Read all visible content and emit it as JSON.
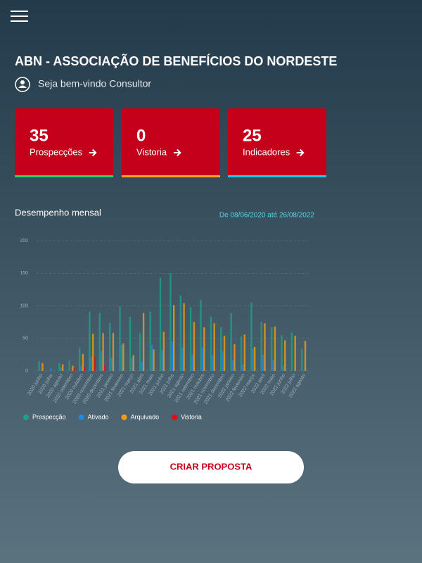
{
  "header": {
    "title": "ABN - ASSOCIAÇÃO DE BENEFÍCIOS DO NORDESTE",
    "welcome": "Seja bem-vindo Consultor"
  },
  "cards": [
    {
      "value": 35,
      "label": "Prospecções"
    },
    {
      "value": 0,
      "label": "Vistoria"
    },
    {
      "value": 25,
      "label": "Indicadores"
    }
  ],
  "chart_data": {
    "type": "bar",
    "title": "Desempenho mensal",
    "subtitle": "De 08/06/2020 até 26/08/2022",
    "categories": [
      "2020 junho",
      "2020 julho",
      "2020 agosto",
      "2020 setembro",
      "2020 outubro",
      "2020 novembro",
      "2020 dezembro",
      "2021 janeiro",
      "2021 fevereiro",
      "2021 março",
      "2021 abril",
      "2021 maio",
      "2021 junho",
      "2021 julho",
      "2021 agosto",
      "2021 setembro",
      "2021 outubro",
      "2021 novembro",
      "2021 dezembro",
      "2022 janeiro",
      "2022 fevereiro",
      "2022 março",
      "2022 abril",
      "2022 maio",
      "2022 junho",
      "2022 julho",
      "2022 agosto"
    ],
    "series": [
      {
        "name": "Prospecção",
        "color": "#1aa38a",
        "values": [
          15,
          0,
          12,
          16,
          36,
          91,
          89,
          74,
          99,
          83,
          58,
          91,
          143,
          150,
          116,
          98,
          109,
          83,
          67,
          89,
          53,
          105,
          75,
          67,
          55,
          59,
          34
        ]
      },
      {
        "name": "Ativado",
        "color": "#1e88e5",
        "values": [
          0,
          4,
          5,
          0,
          8,
          22,
          30,
          20,
          40,
          20,
          14,
          40,
          32,
          45,
          36,
          25,
          36,
          24,
          30,
          16,
          10,
          35,
          25,
          16,
          8,
          0,
          0
        ]
      },
      {
        "name": "Arquivado",
        "color": "#f39c12",
        "values": [
          12,
          0,
          10,
          8,
          26,
          57,
          58,
          58,
          42,
          24,
          89,
          33,
          60,
          101,
          104,
          75,
          67,
          73,
          54,
          41,
          56,
          37,
          73,
          68,
          47,
          54,
          46
        ]
      },
      {
        "name": "Vistoria",
        "color": "#e01010",
        "values": [
          0,
          0,
          0,
          4,
          6,
          22,
          8,
          0,
          0,
          0,
          0,
          0,
          0,
          0,
          0,
          0,
          0,
          0,
          0,
          0,
          0,
          0,
          0,
          0,
          0,
          0,
          0
        ]
      }
    ],
    "ylim": [
      0,
      200
    ],
    "yticks": [
      0,
      50,
      100,
      150,
      200
    ],
    "grid": true
  },
  "button": {
    "label": "CRIAR PROPOSTA"
  }
}
